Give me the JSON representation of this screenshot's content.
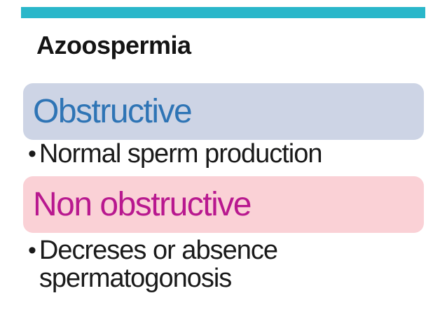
{
  "slide": {
    "title": "Azoospermia",
    "accent_bar_color": "#2ab7ca",
    "bullet_glyph": "•",
    "text_color": "#1a1a1a",
    "sections": [
      {
        "heading": "Obstructive",
        "heading_color": "#2e74b5",
        "box_color": "#cdd4e5",
        "bullets": [
          {
            "lines": [
              "Normal sperm production"
            ]
          }
        ]
      },
      {
        "heading": "Non obstructive",
        "heading_color": "#b8188f",
        "box_color": "#fad1d6",
        "bullets": [
          {
            "lines": [
              "Decreses or absence",
              "spermatogonosis"
            ]
          }
        ]
      }
    ]
  }
}
